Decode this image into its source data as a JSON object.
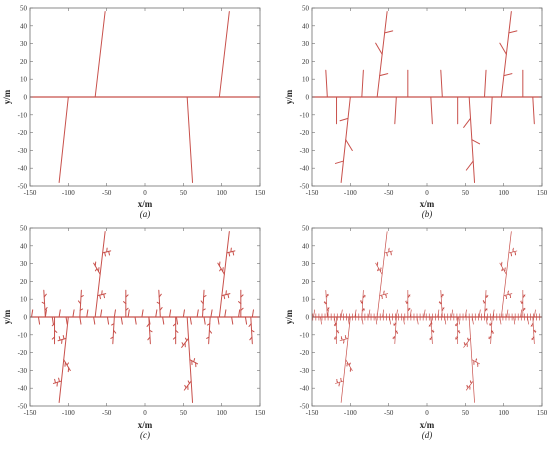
{
  "figure": {
    "panel_labels": [
      "(a)",
      "(b)",
      "(c)",
      "(d)"
    ]
  },
  "chart_data": [
    {
      "type": "line",
      "panel": "(a)",
      "xlabel": "x/m",
      "ylabel": "y/m",
      "xlim": [
        -150,
        150
      ],
      "ylim": [
        -50,
        50
      ],
      "xticks": [
        -150,
        -100,
        -50,
        0,
        50,
        100,
        150
      ],
      "yticks": [
        -50,
        -40,
        -30,
        -20,
        -10,
        0,
        10,
        20,
        30,
        40,
        50
      ],
      "grid": false,
      "line_color": "#c8504b",
      "depth": 1
    },
    {
      "type": "line",
      "panel": "(b)",
      "xlabel": "x/m",
      "ylabel": "y/m",
      "xlim": [
        -150,
        150
      ],
      "ylim": [
        -50,
        50
      ],
      "xticks": [
        -150,
        -100,
        -50,
        0,
        50,
        100,
        150
      ],
      "yticks": [
        -50,
        -40,
        -30,
        -20,
        -10,
        0,
        10,
        20,
        30,
        40,
        50
      ],
      "grid": false,
      "line_color": "#c8504b",
      "depth": 2
    },
    {
      "type": "line",
      "panel": "(c)",
      "xlabel": "x/m",
      "ylabel": "y/m",
      "xlim": [
        -150,
        150
      ],
      "ylim": [
        -50,
        50
      ],
      "xticks": [
        -150,
        -100,
        -50,
        0,
        50,
        100,
        150
      ],
      "yticks": [
        -50,
        -40,
        -30,
        -20,
        -10,
        0,
        10,
        20,
        30,
        40,
        50
      ],
      "grid": false,
      "line_color": "#c8504b",
      "depth": 3
    },
    {
      "type": "line",
      "panel": "(d)",
      "xlabel": "x/m",
      "ylabel": "y/m",
      "xlim": [
        -150,
        150
      ],
      "ylim": [
        -50,
        50
      ],
      "xticks": [
        -150,
        -100,
        -50,
        0,
        50,
        100,
        150
      ],
      "yticks": [
        -50,
        -40,
        -30,
        -20,
        -10,
        0,
        10,
        20,
        30,
        40,
        50
      ],
      "grid": false,
      "line_color": "#c8504b",
      "depth": 4
    }
  ]
}
